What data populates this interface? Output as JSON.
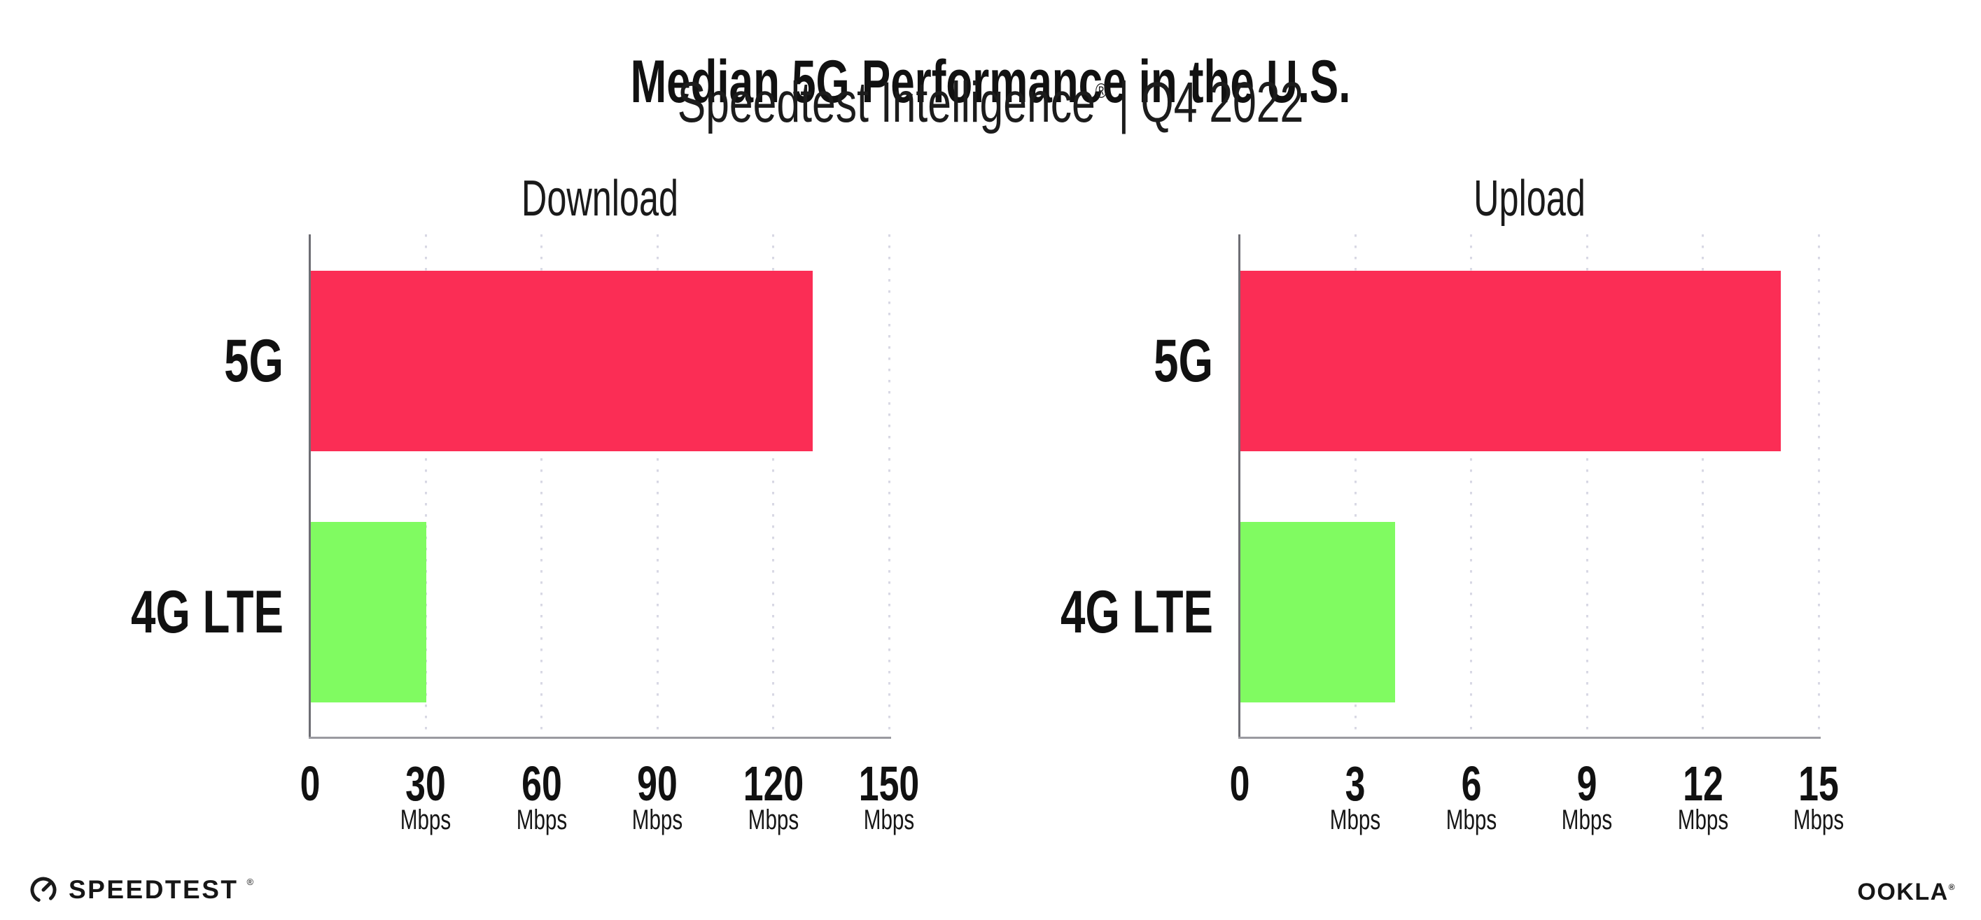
{
  "header": {
    "title": "Median 5G Performance in the U.S.",
    "subtitle_brand": "Speedtest Intelligence",
    "subtitle_reg": "®",
    "subtitle_divider": "|",
    "subtitle_period": "Q4 2022"
  },
  "chart_data": [
    {
      "type": "bar",
      "orientation": "horizontal",
      "title": "Download",
      "categories": [
        "5G",
        "4G LTE"
      ],
      "values": [
        130,
        30
      ],
      "unit": "Mbps",
      "xlim": [
        0,
        150
      ],
      "xticks": [
        0,
        30,
        60,
        90,
        120,
        150
      ],
      "bar_colors": [
        "#fb2d55",
        "#80fb61"
      ],
      "grid": "dotted vertical gridlines at each tick",
      "legend": "none"
    },
    {
      "type": "bar",
      "orientation": "horizontal",
      "title": "Upload",
      "categories": [
        "5G",
        "4G LTE"
      ],
      "values": [
        14,
        4
      ],
      "unit": "Mbps",
      "xlim": [
        0,
        15
      ],
      "xticks": [
        0,
        3,
        6,
        9,
        12,
        15
      ],
      "bar_colors": [
        "#fb2d55",
        "#80fb61"
      ],
      "grid": "dotted vertical gridlines at each tick",
      "legend": "none"
    }
  ],
  "footer": {
    "speedtest_label": "SPEEDTEST",
    "speedtest_reg": "®",
    "ookla_label": "OOKLA",
    "ookla_reg": "®"
  },
  "colors": {
    "bar_5g": "#fb2d55",
    "bar_4g_lte": "#80fb61",
    "gridline": "#d8d8e4",
    "x_axis": "#9a9aa0",
    "y_axis": "#6e6e74",
    "text": "#141414"
  }
}
